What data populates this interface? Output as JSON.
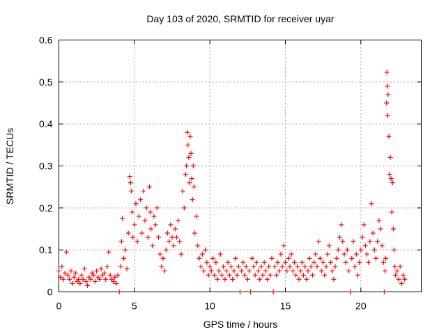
{
  "chart_data": {
    "type": "scatter",
    "title": "Day 103 of 2020, SRMTID for receiver uyar",
    "xlabel": "GPS time / hours",
    "ylabel": "SRMTID / TECUs",
    "xlim": [
      0,
      24
    ],
    "ylim": [
      0,
      0.6
    ],
    "xticks": [
      0,
      5,
      10,
      15,
      20
    ],
    "yticks": [
      0,
      0.1,
      0.2,
      0.3,
      0.4,
      0.5,
      0.6
    ],
    "xtick_labels": [
      "0",
      "5",
      "10",
      "15",
      "20"
    ],
    "ytick_labels": [
      "0",
      "0.1",
      "0.2",
      "0.3",
      "0.4",
      "0.5",
      "0.6"
    ],
    "grid": true,
    "marker": "+",
    "color": "#ff0000",
    "series": [
      {
        "name": "SRMTID",
        "points": [
          [
            0.0,
            0.05
          ],
          [
            0.1,
            0.035
          ],
          [
            0.2,
            0.06
          ],
          [
            0.3,
            0.03
          ],
          [
            0.4,
            0.045
          ],
          [
            0.5,
            0.095
          ],
          [
            0.6,
            0.04
          ],
          [
            0.7,
            0.03
          ],
          [
            0.8,
            0.05
          ],
          [
            0.9,
            0.02
          ],
          [
            1.0,
            0.035
          ],
          [
            1.1,
            0.045
          ],
          [
            1.2,
            0.025
          ],
          [
            1.3,
            0.03
          ],
          [
            1.4,
            0.02
          ],
          [
            1.5,
            0.04
          ],
          [
            1.6,
            0.03
          ],
          [
            1.7,
            0.055
          ],
          [
            1.8,
            0.025
          ],
          [
            1.9,
            0.015
          ],
          [
            2.0,
            0.035
          ],
          [
            2.1,
            0.03
          ],
          [
            2.2,
            0.045
          ],
          [
            2.3,
            0.04
          ],
          [
            2.4,
            0.025
          ],
          [
            2.5,
            0.05
          ],
          [
            2.6,
            0.035
          ],
          [
            2.7,
            0.03
          ],
          [
            2.8,
            0.055
          ],
          [
            2.9,
            0.04
          ],
          [
            3.0,
            0.045
          ],
          [
            3.1,
            0.03
          ],
          [
            3.2,
            0.06
          ],
          [
            3.3,
            0.095
          ],
          [
            3.4,
            0.04
          ],
          [
            3.5,
            0.03
          ],
          [
            3.6,
            0.025
          ],
          [
            3.7,
            0.035
          ],
          [
            3.8,
            0.02
          ],
          [
            3.9,
            0.04
          ],
          [
            4.0,
            0.0
          ],
          [
            4.1,
            0.06
          ],
          [
            4.15,
            0.12
          ],
          [
            4.2,
            0.175
          ],
          [
            4.3,
            0.08
          ],
          [
            4.4,
            0.1
          ],
          [
            4.5,
            0.055
          ],
          [
            4.6,
            0.14
          ],
          [
            4.7,
            0.275
          ],
          [
            4.75,
            0.26
          ],
          [
            4.8,
            0.24
          ],
          [
            4.85,
            0.19
          ],
          [
            4.9,
            0.13
          ],
          [
            5.0,
            0.16
          ],
          [
            5.1,
            0.21
          ],
          [
            5.2,
            0.12
          ],
          [
            5.3,
            0.18
          ],
          [
            5.4,
            0.22
          ],
          [
            5.5,
            0.14
          ],
          [
            5.6,
            0.24
          ],
          [
            5.7,
            0.17
          ],
          [
            5.8,
            0.2
          ],
          [
            5.9,
            0.13
          ],
          [
            6.0,
            0.25
          ],
          [
            6.05,
            0.19
          ],
          [
            6.1,
            0.15
          ],
          [
            6.2,
            0.11
          ],
          [
            6.3,
            0.18
          ],
          [
            6.4,
            0.16
          ],
          [
            6.5,
            0.2
          ],
          [
            6.6,
            0.13
          ],
          [
            6.7,
            0.09
          ],
          [
            6.8,
            0.06
          ],
          [
            6.9,
            0.08
          ],
          [
            7.0,
            0.05
          ],
          [
            7.1,
            0.1
          ],
          [
            7.2,
            0.14
          ],
          [
            7.3,
            0.12
          ],
          [
            7.4,
            0.16
          ],
          [
            7.5,
            0.13
          ],
          [
            7.6,
            0.11
          ],
          [
            7.7,
            0.15
          ],
          [
            7.8,
            0.13
          ],
          [
            7.9,
            0.17
          ],
          [
            8.0,
            0.12
          ],
          [
            8.1,
            0.09
          ],
          [
            8.2,
            0.24
          ],
          [
            8.3,
            0.2
          ],
          [
            8.4,
            0.28
          ],
          [
            8.45,
            0.3
          ],
          [
            8.5,
            0.38
          ],
          [
            8.55,
            0.35
          ],
          [
            8.6,
            0.32
          ],
          [
            8.65,
            0.26
          ],
          [
            8.7,
            0.37
          ],
          [
            8.75,
            0.33
          ],
          [
            8.8,
            0.27
          ],
          [
            8.85,
            0.22
          ],
          [
            8.9,
            0.3
          ],
          [
            8.95,
            0.25
          ],
          [
            9.0,
            0.14
          ],
          [
            9.1,
            0.18
          ],
          [
            9.2,
            0.11
          ],
          [
            9.3,
            0.08
          ],
          [
            9.4,
            0.06
          ],
          [
            9.5,
            0.09
          ],
          [
            9.6,
            0.05
          ],
          [
            9.7,
            0.1
          ],
          [
            9.8,
            0.07
          ],
          [
            9.9,
            0.04
          ],
          [
            10.0,
            0.06
          ],
          [
            10.1,
            0.05
          ],
          [
            10.2,
            0.08
          ],
          [
            10.3,
            0.04
          ],
          [
            10.4,
            0.07
          ],
          [
            10.5,
            0.03
          ],
          [
            10.6,
            0.05
          ],
          [
            10.7,
            0.09
          ],
          [
            10.8,
            0.04
          ],
          [
            10.9,
            0.06
          ],
          [
            11.0,
            0.03
          ],
          [
            11.1,
            0.05
          ],
          [
            11.2,
            0.07
          ],
          [
            11.3,
            0.04
          ],
          [
            11.4,
            0.06
          ],
          [
            11.5,
            0.03
          ],
          [
            11.6,
            0.05
          ],
          [
            11.7,
            0.08
          ],
          [
            11.8,
            0.04
          ],
          [
            11.9,
            0.06
          ],
          [
            12.0,
            0.0
          ],
          [
            12.1,
            0.05
          ],
          [
            12.2,
            0.07
          ],
          [
            12.3,
            0.04
          ],
          [
            12.4,
            0.06
          ],
          [
            12.5,
            0.03
          ],
          [
            12.6,
            0.05
          ],
          [
            12.7,
            0.0
          ],
          [
            12.8,
            0.08
          ],
          [
            12.9,
            0.06
          ],
          [
            13.0,
            0.04
          ],
          [
            13.1,
            0.07
          ],
          [
            13.2,
            0.05
          ],
          [
            13.3,
            0.03
          ],
          [
            13.4,
            0.06
          ],
          [
            13.5,
            0.04
          ],
          [
            13.6,
            0.07
          ],
          [
            13.7,
            0.05
          ],
          [
            13.8,
            0.03
          ],
          [
            13.9,
            0.06
          ],
          [
            14.0,
            0.04
          ],
          [
            14.1,
            0.08
          ],
          [
            14.2,
            0.0
          ],
          [
            14.3,
            0.06
          ],
          [
            14.4,
            0.04
          ],
          [
            14.5,
            0.07
          ],
          [
            14.6,
            0.05
          ],
          [
            14.7,
            0.09
          ],
          [
            14.8,
            0.06
          ],
          [
            14.9,
            0.11
          ],
          [
            15.0,
            0.07
          ],
          [
            15.1,
            0.05
          ],
          [
            15.2,
            0.08
          ],
          [
            15.3,
            0.06
          ],
          [
            15.4,
            0.09
          ],
          [
            15.5,
            0.05
          ],
          [
            15.6,
            0.07
          ],
          [
            15.7,
            0.04
          ],
          [
            15.8,
            0.06
          ],
          [
            15.9,
            0.03
          ],
          [
            16.0,
            0.05
          ],
          [
            16.1,
            0.07
          ],
          [
            16.2,
            0.04
          ],
          [
            16.3,
            0.06
          ],
          [
            16.4,
            0.03
          ],
          [
            16.5,
            0.05
          ],
          [
            16.6,
            0.08
          ],
          [
            16.7,
            0.06
          ],
          [
            16.8,
            0.04
          ],
          [
            16.9,
            0.07
          ],
          [
            17.0,
            0.09
          ],
          [
            17.1,
            0.06
          ],
          [
            17.2,
            0.12
          ],
          [
            17.3,
            0.08
          ],
          [
            17.4,
            0.05
          ],
          [
            17.5,
            0.07
          ],
          [
            17.6,
            0.04
          ],
          [
            17.7,
            0.06
          ],
          [
            17.8,
            0.09
          ],
          [
            17.9,
            0.11
          ],
          [
            18.0,
            0.07
          ],
          [
            18.1,
            0.05
          ],
          [
            18.2,
            0.03
          ],
          [
            18.3,
            0.06
          ],
          [
            18.4,
            0.08
          ],
          [
            18.5,
            0.1
          ],
          [
            18.6,
            0.13
          ],
          [
            18.7,
            0.16
          ],
          [
            18.8,
            0.12
          ],
          [
            18.9,
            0.09
          ],
          [
            19.0,
            0.07
          ],
          [
            19.1,
            0.1
          ],
          [
            19.2,
            0.05
          ],
          [
            19.3,
            0.0
          ],
          [
            19.4,
            0.08
          ],
          [
            19.5,
            0.12
          ],
          [
            19.6,
            0.06
          ],
          [
            19.7,
            0.09
          ],
          [
            19.8,
            0.04
          ],
          [
            19.9,
            0.07
          ],
          [
            20.0,
            0.1
          ],
          [
            20.1,
            0.13
          ],
          [
            20.2,
            0.16
          ],
          [
            20.3,
            0.11
          ],
          [
            20.4,
            0.09
          ],
          [
            20.5,
            0.07
          ],
          [
            20.6,
            0.12
          ],
          [
            20.7,
            0.21
          ],
          [
            20.8,
            0.14
          ],
          [
            20.9,
            0.1
          ],
          [
            21.0,
            0.08
          ],
          [
            21.1,
            0.12
          ],
          [
            21.2,
            0.17
          ],
          [
            21.3,
            0.15
          ],
          [
            21.4,
            0.11
          ],
          [
            21.5,
            0.07
          ],
          [
            21.55,
            0.0
          ],
          [
            21.6,
            0.05
          ],
          [
            21.65,
            0.08
          ],
          [
            21.7,
            0.45
          ],
          [
            21.72,
            0.523
          ],
          [
            21.75,
            0.49
          ],
          [
            21.78,
            0.42
          ],
          [
            21.8,
            0.47
          ],
          [
            21.85,
            0.37
          ],
          [
            21.9,
            0.28
          ],
          [
            21.95,
            0.32
          ],
          [
            22.0,
            0.27
          ],
          [
            22.05,
            0.19
          ],
          [
            22.1,
            0.26
          ],
          [
            22.15,
            0.15
          ],
          [
            22.2,
            0.1
          ],
          [
            22.25,
            0.06
          ],
          [
            22.3,
            0.04
          ],
          [
            22.4,
            0.05
          ],
          [
            22.5,
            0.03
          ],
          [
            22.6,
            0.06
          ],
          [
            22.7,
            0.02
          ],
          [
            22.8,
            0.04
          ],
          [
            22.9,
            0.03
          ]
        ]
      }
    ]
  }
}
